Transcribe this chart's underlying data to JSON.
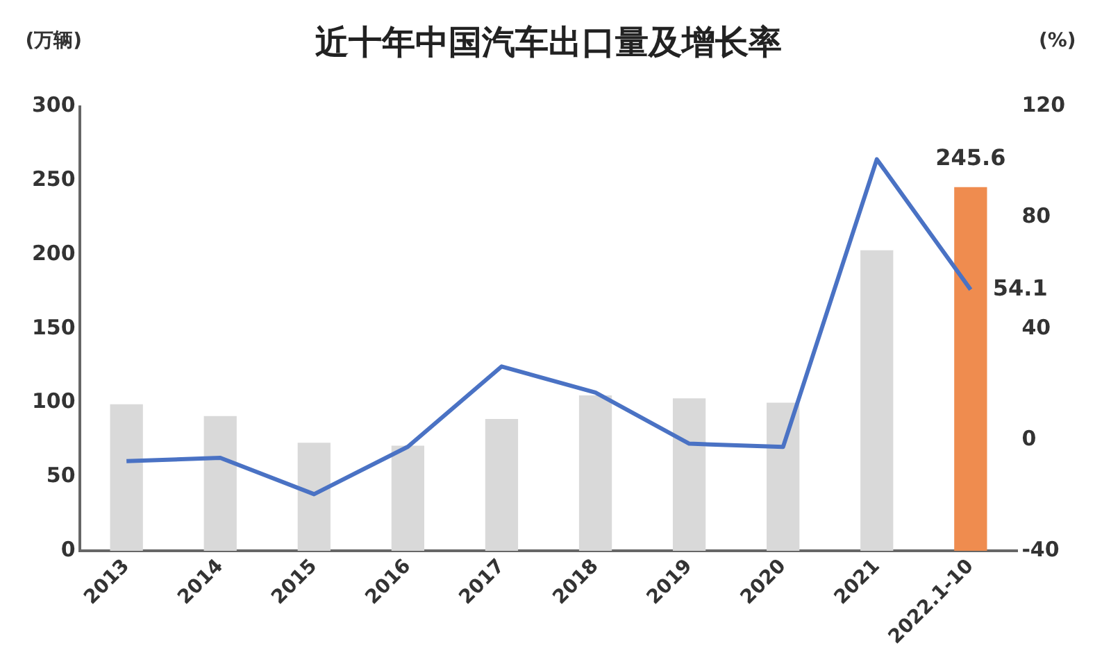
{
  "chart_data": {
    "type": "bar",
    "title": "近十年中国汽车出口量及增长率",
    "ylabel": "(万辆)",
    "y2label": "(%)",
    "categories": [
      "2013",
      "2014",
      "2015",
      "2016",
      "2017",
      "2018",
      "2019",
      "2020",
      "2021",
      "2022.1-10"
    ],
    "series": [
      {
        "colors": [
          "#d9d9d9",
          "#d9d9d9",
          "#d9d9d9",
          "#d9d9d9",
          "#d9d9d9",
          "#d9d9d9",
          "#d9d9d9",
          "#d9d9d9",
          "#d9d9d9",
          "#ef8c4f"
        ],
        "values": [
          99,
          91,
          73,
          71,
          89,
          105,
          103,
          100,
          203,
          245.6
        ],
        "value_labels": [
          null,
          null,
          null,
          null,
          null,
          null,
          null,
          null,
          null,
          "245.6"
        ]
      },
      {
        "type": "line",
        "axis": "y2",
        "color": "#4a72c4",
        "values": [
          -7.7,
          -6.5,
          -19.6,
          -2.5,
          26.4,
          17,
          -1.4,
          -2.6,
          101,
          54.1
        ],
        "value_labels": [
          null,
          null,
          null,
          null,
          null,
          null,
          null,
          null,
          null,
          "54.1"
        ]
      }
    ],
    "ylim": [
      0,
      300
    ],
    "yticks": [
      0,
      50,
      100,
      150,
      200,
      250,
      300
    ],
    "y2lim": [
      -40,
      120
    ],
    "y2ticks": [
      -40,
      0,
      40,
      80,
      120
    ],
    "grid": false,
    "legend": false
  }
}
